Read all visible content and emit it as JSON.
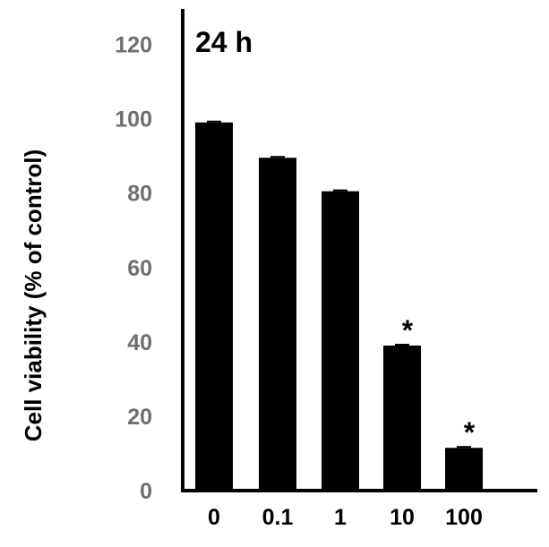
{
  "chart_data": {
    "type": "bar",
    "title": "24 h",
    "xlabel": "",
    "ylabel": "Cell viability (% of control)",
    "categories": [
      "0",
      "0.1",
      "1",
      "10",
      "100"
    ],
    "values": [
      99,
      89.5,
      80.5,
      39,
      11.5
    ],
    "significance": [
      "",
      "",
      "",
      "*",
      "*"
    ],
    "ylim": [
      0,
      130
    ],
    "yticks": [
      0,
      20,
      40,
      60,
      80,
      100,
      120
    ],
    "ytick_labels": [
      "0",
      "20",
      "40",
      "60",
      "80",
      "100",
      "120"
    ],
    "grid": false,
    "legend": "none",
    "colors": {
      "bars": "#000000",
      "axes": "#000000",
      "y_tick_labels": "#6f6f6f",
      "x_tick_labels": "#000000"
    }
  }
}
